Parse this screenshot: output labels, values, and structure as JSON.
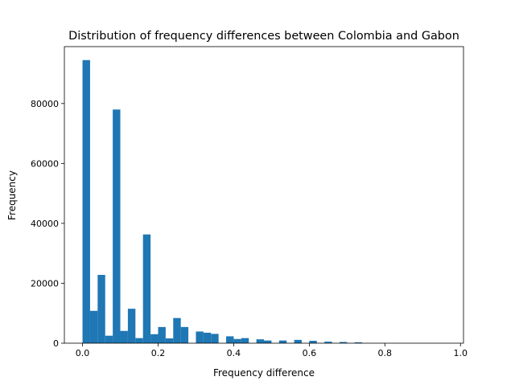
{
  "chart_data": {
    "type": "bar",
    "title": "Distribution of frequency differences between Colombia and Gabon",
    "xlabel": "Frequency difference",
    "ylabel": "Frequency",
    "xlim": [
      -0.048,
      1.008
    ],
    "ylim": [
      0,
      99000
    ],
    "xticks": [
      0.0,
      0.2,
      0.4,
      0.6,
      0.8,
      1.0
    ],
    "xtick_labels": [
      "0.0",
      "0.2",
      "0.4",
      "0.6",
      "0.8",
      "1.0"
    ],
    "yticks": [
      0,
      20000,
      40000,
      60000,
      80000
    ],
    "ytick_labels": [
      "0",
      "20000",
      "40000",
      "60000",
      "80000"
    ],
    "bin_width": 0.02,
    "bin_start": 0.0,
    "values": [
      94500,
      10800,
      22800,
      2500,
      78000,
      4100,
      11500,
      1700,
      36300,
      3000,
      5400,
      1600,
      8400,
      5400,
      0,
      3900,
      3500,
      3100,
      0,
      2300,
      1400,
      1700,
      0,
      1300,
      900,
      0,
      900,
      0,
      1100,
      0,
      800,
      0,
      500,
      0,
      400,
      0,
      300,
      0,
      0,
      0,
      0,
      0,
      0,
      0,
      0,
      0,
      0,
      0
    ],
    "color": "#1f77b4",
    "grid": false,
    "legend": "none"
  }
}
